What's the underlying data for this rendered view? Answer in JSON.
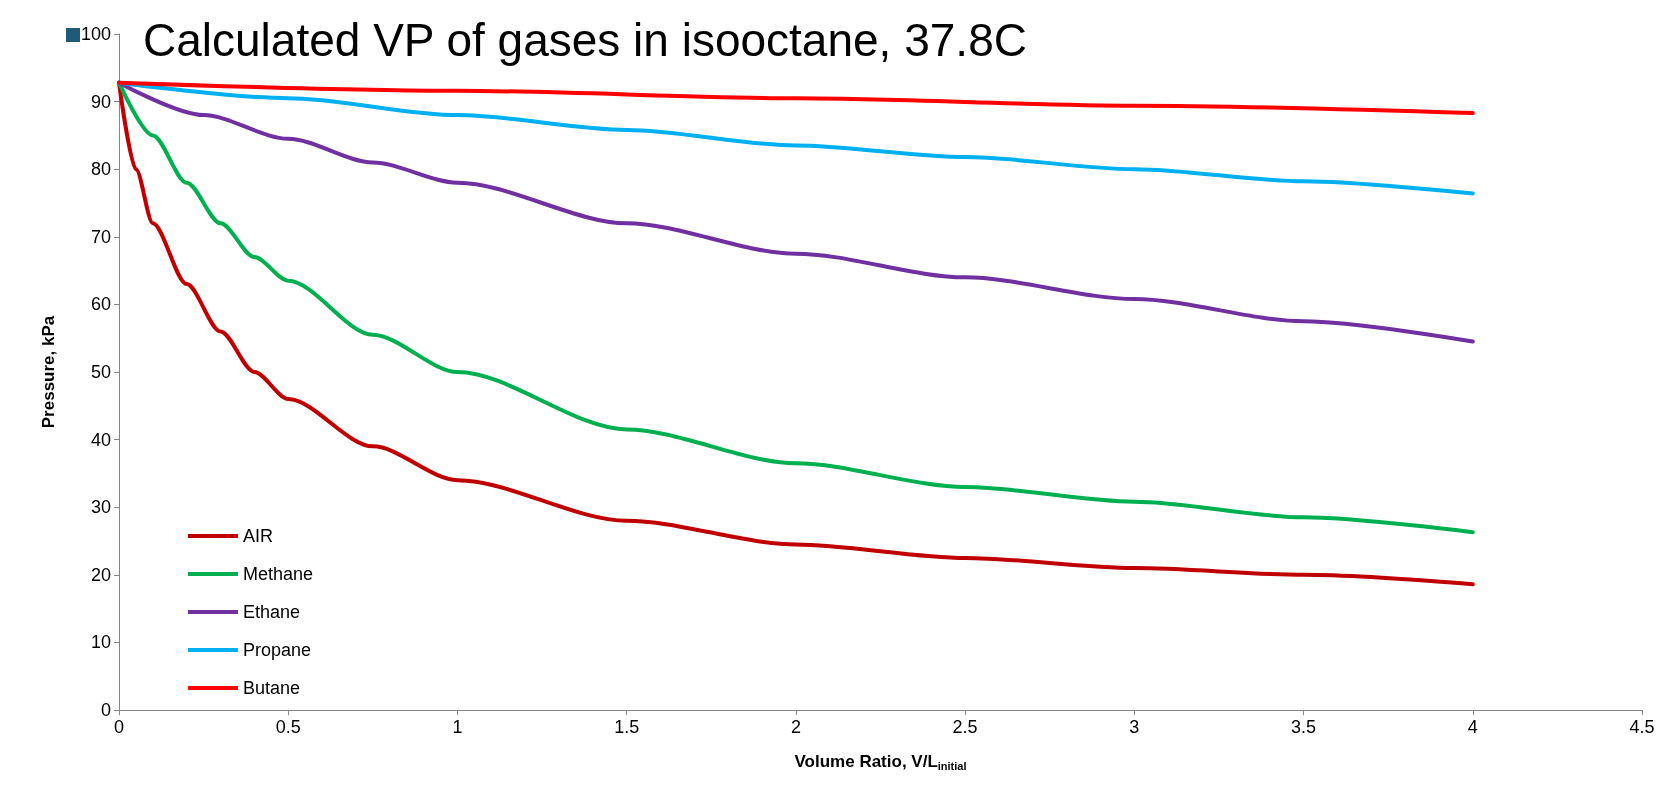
{
  "chart_data": {
    "type": "line",
    "title": "Calculated VP of gases in isooctane, 37.8C",
    "xlabel": "Volume Ratio, V/L$_{initial}$",
    "ylabel": "Pressure, kPa",
    "xlim": [
      0,
      4.5
    ],
    "xticks": [
      0,
      0.5,
      1,
      1.5,
      2,
      2.5,
      3,
      3.5,
      4,
      4.5
    ],
    "ylim": [
      0,
      100
    ],
    "yticks": [
      0,
      10,
      20,
      30,
      40,
      50,
      60,
      70,
      80,
      90,
      100
    ],
    "grid": false,
    "legend": "bottom left",
    "marker": "none",
    "line_style": "solid",
    "series": [
      {
        "name": "AIR",
        "color": "#c00000",
        "x": [
          0,
          0.05,
          0.1,
          0.2,
          0.3,
          0.4,
          0.5,
          0.75,
          1,
          1.5,
          2,
          2.5,
          3,
          3.5,
          4
        ],
        "values": [
          92.8,
          80,
          72,
          63,
          56,
          50,
          46,
          39,
          34,
          28,
          24.5,
          22.5,
          21,
          20,
          18.6
        ]
      },
      {
        "name": "Methane",
        "color": "#00b050",
        "x": [
          0,
          0.1,
          0.2,
          0.3,
          0.4,
          0.5,
          0.75,
          1,
          1.5,
          2,
          2.5,
          3,
          3.5,
          4
        ],
        "values": [
          92.8,
          85,
          78,
          72,
          67,
          63.5,
          55.5,
          50,
          41.5,
          36.5,
          33,
          30.8,
          28.5,
          26.3
        ]
      },
      {
        "name": "Ethane",
        "color": "#7030a0",
        "x": [
          0,
          0.25,
          0.5,
          0.75,
          1,
          1.5,
          2,
          2.5,
          3,
          3.5,
          4
        ],
        "values": [
          92.8,
          88,
          84.5,
          81,
          78,
          72,
          67.5,
          64,
          60.8,
          57.5,
          54.5
        ]
      },
      {
        "name": "Propane",
        "color": "#00b0f0",
        "x": [
          0,
          0.5,
          1,
          1.5,
          2,
          2.5,
          3,
          3.5,
          4
        ],
        "values": [
          92.8,
          90.5,
          88,
          85.8,
          83.5,
          81.8,
          80,
          78.2,
          76.4
        ]
      },
      {
        "name": "Butane",
        "color": "#ff0000",
        "x": [
          0,
          1,
          2,
          3,
          4
        ],
        "values": [
          92.8,
          91.6,
          90.5,
          89.4,
          88.3
        ]
      }
    ]
  }
}
